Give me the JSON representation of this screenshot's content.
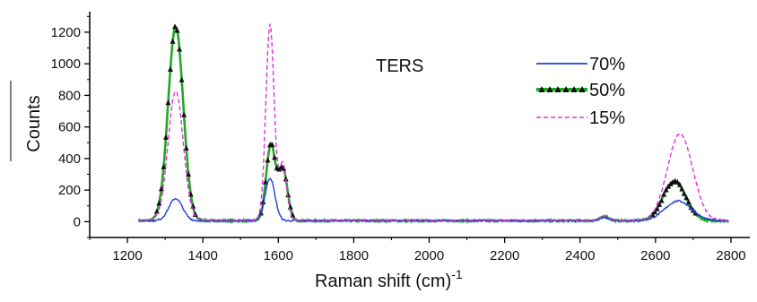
{
  "chart_data": {
    "type": "line",
    "xlabel": "Raman shift (cm)",
    "xlabel_sup": "-1",
    "ylabel": "Counts",
    "annotation": "TERS",
    "xlim": [
      1100,
      2850
    ],
    "ylim": [
      -100,
      1330
    ],
    "xticks": [
      "1200",
      "1400",
      "1600",
      "1800",
      "2000",
      "2200",
      "2400",
      "2600",
      "2800"
    ],
    "yticks": [
      "0",
      "200",
      "400",
      "600",
      "800",
      "1000",
      "1200"
    ],
    "legend_position": "top-right",
    "grid": false,
    "series": [
      {
        "name": "70%",
        "color": "#1f3fd8",
        "style": "solid",
        "peaks": [
          [
            1328,
            140,
            18
          ],
          [
            1578,
            270,
            13
          ],
          [
            2465,
            20,
            12
          ],
          [
            2660,
            125,
            35
          ]
        ],
        "baseline": 6
      },
      {
        "name": "50%",
        "color": "#22a822",
        "style": "solid-with-triangle-markers",
        "peaks": [
          [
            1328,
            1230,
            20
          ],
          [
            1580,
            480,
            12
          ],
          [
            1612,
            330,
            12
          ],
          [
            2465,
            25,
            12
          ],
          [
            2650,
            250,
            30
          ]
        ],
        "baseline": 6
      },
      {
        "name": "15%",
        "color": "#e030e0",
        "style": "dashed",
        "peaks": [
          [
            1328,
            820,
            20
          ],
          [
            1578,
            1240,
            11
          ],
          [
            1612,
            360,
            10
          ],
          [
            2465,
            30,
            12
          ],
          [
            2665,
            550,
            33
          ]
        ],
        "baseline": 8
      }
    ]
  }
}
